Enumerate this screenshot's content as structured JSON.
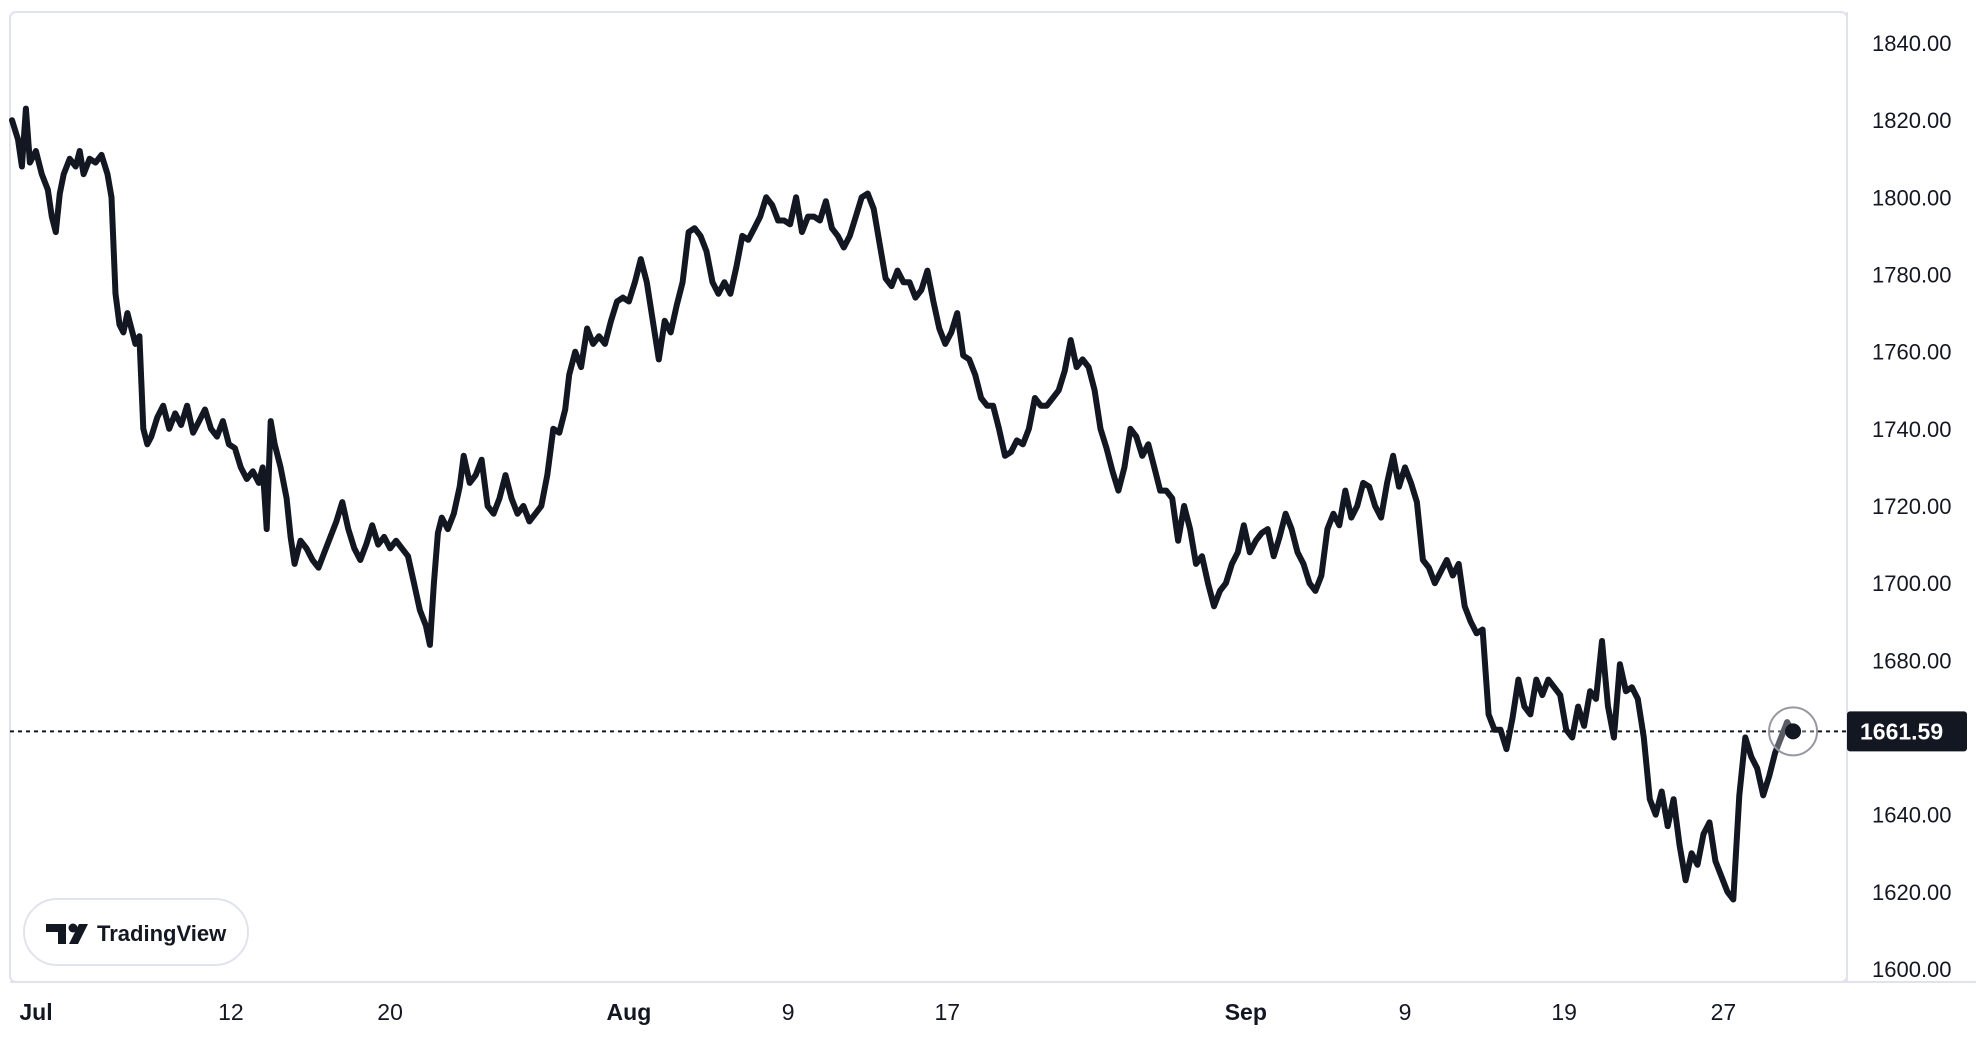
{
  "chart_data": {
    "type": "line",
    "x_axis": {
      "labels": [
        {
          "text": "Jul",
          "day": 0,
          "bold": true
        },
        {
          "text": "12",
          "day": 11
        },
        {
          "text": "20",
          "day": 19
        },
        {
          "text": "Aug",
          "day": 31,
          "bold": true
        },
        {
          "text": "9",
          "day": 39
        },
        {
          "text": "17",
          "day": 47
        },
        {
          "text": "Sep",
          "day": 62,
          "bold": true
        },
        {
          "text": "9",
          "day": 70
        },
        {
          "text": "19",
          "day": 78
        },
        {
          "text": "27",
          "day": 86
        }
      ]
    },
    "y_axis": {
      "min": 1600,
      "max": 1840,
      "ticks": [
        "1600.00",
        "1620.00",
        "1640.00",
        "1660.00",
        "1680.00",
        "1700.00",
        "1720.00",
        "1740.00",
        "1760.00",
        "1780.00",
        "1800.00",
        "1820.00",
        "1840.00"
      ],
      "position": "right"
    },
    "last_price": {
      "value": 1661.59,
      "label": "1661.59"
    },
    "grid": false,
    "series": [
      {
        "color": "#131722",
        "points": [
          [
            0.0,
            1820
          ],
          [
            0.3,
            1815
          ],
          [
            0.5,
            1808
          ],
          [
            0.7,
            1823
          ],
          [
            0.9,
            1809
          ],
          [
            1.2,
            1812
          ],
          [
            1.5,
            1806
          ],
          [
            1.8,
            1802
          ],
          [
            2.0,
            1795
          ],
          [
            2.2,
            1791
          ],
          [
            2.4,
            1801
          ],
          [
            2.6,
            1806
          ],
          [
            2.9,
            1810
          ],
          [
            3.2,
            1808
          ],
          [
            3.4,
            1812
          ],
          [
            3.6,
            1806
          ],
          [
            3.9,
            1810
          ],
          [
            4.2,
            1809
          ],
          [
            4.5,
            1811
          ],
          [
            4.8,
            1806
          ],
          [
            5.0,
            1800
          ],
          [
            5.2,
            1775
          ],
          [
            5.4,
            1767
          ],
          [
            5.6,
            1765
          ],
          [
            5.8,
            1770
          ],
          [
            6.0,
            1766
          ],
          [
            6.2,
            1762
          ],
          [
            6.4,
            1764
          ],
          [
            6.6,
            1740
          ],
          [
            6.8,
            1736
          ],
          [
            7.0,
            1738
          ],
          [
            7.3,
            1743
          ],
          [
            7.6,
            1746
          ],
          [
            7.9,
            1740
          ],
          [
            8.2,
            1744
          ],
          [
            8.5,
            1741
          ],
          [
            8.8,
            1746
          ],
          [
            9.1,
            1739
          ],
          [
            9.4,
            1742
          ],
          [
            9.7,
            1745
          ],
          [
            10.0,
            1740
          ],
          [
            10.3,
            1738
          ],
          [
            10.6,
            1742
          ],
          [
            10.9,
            1736
          ],
          [
            11.2,
            1735
          ],
          [
            11.5,
            1730
          ],
          [
            11.8,
            1727
          ],
          [
            12.1,
            1729
          ],
          [
            12.4,
            1726
          ],
          [
            12.6,
            1730
          ],
          [
            12.8,
            1714
          ],
          [
            13.0,
            1742
          ],
          [
            13.2,
            1736
          ],
          [
            13.5,
            1730
          ],
          [
            13.8,
            1722
          ],
          [
            14.0,
            1712
          ],
          [
            14.2,
            1705
          ],
          [
            14.5,
            1711
          ],
          [
            14.8,
            1709
          ],
          [
            15.1,
            1706
          ],
          [
            15.4,
            1704
          ],
          [
            15.7,
            1708
          ],
          [
            16.0,
            1712
          ],
          [
            16.3,
            1716
          ],
          [
            16.6,
            1721
          ],
          [
            16.9,
            1714
          ],
          [
            17.2,
            1709
          ],
          [
            17.5,
            1706
          ],
          [
            17.8,
            1710
          ],
          [
            18.1,
            1715
          ],
          [
            18.4,
            1710
          ],
          [
            18.7,
            1712
          ],
          [
            19.0,
            1709
          ],
          [
            19.3,
            1711
          ],
          [
            19.6,
            1709
          ],
          [
            19.9,
            1707
          ],
          [
            20.2,
            1700
          ],
          [
            20.5,
            1693
          ],
          [
            20.8,
            1689
          ],
          [
            21.0,
            1684
          ],
          [
            21.2,
            1700
          ],
          [
            21.4,
            1713
          ],
          [
            21.6,
            1717
          ],
          [
            21.9,
            1714
          ],
          [
            22.2,
            1718
          ],
          [
            22.5,
            1725
          ],
          [
            22.7,
            1733
          ],
          [
            23.0,
            1726
          ],
          [
            23.3,
            1728
          ],
          [
            23.6,
            1732
          ],
          [
            23.9,
            1720
          ],
          [
            24.2,
            1718
          ],
          [
            24.5,
            1722
          ],
          [
            24.8,
            1728
          ],
          [
            25.1,
            1722
          ],
          [
            25.4,
            1718
          ],
          [
            25.7,
            1720
          ],
          [
            26.0,
            1716
          ],
          [
            26.3,
            1718
          ],
          [
            26.6,
            1720
          ],
          [
            26.9,
            1728
          ],
          [
            27.2,
            1740
          ],
          [
            27.5,
            1739
          ],
          [
            27.8,
            1745
          ],
          [
            28.0,
            1754
          ],
          [
            28.3,
            1760
          ],
          [
            28.6,
            1756
          ],
          [
            28.9,
            1766
          ],
          [
            29.2,
            1762
          ],
          [
            29.5,
            1764
          ],
          [
            29.8,
            1762
          ],
          [
            30.1,
            1768
          ],
          [
            30.4,
            1773
          ],
          [
            30.7,
            1774
          ],
          [
            31.0,
            1773
          ],
          [
            31.3,
            1778
          ],
          [
            31.6,
            1784
          ],
          [
            31.9,
            1778
          ],
          [
            32.2,
            1768
          ],
          [
            32.5,
            1758
          ],
          [
            32.8,
            1768
          ],
          [
            33.1,
            1765
          ],
          [
            33.4,
            1772
          ],
          [
            33.7,
            1778
          ],
          [
            34.0,
            1791
          ],
          [
            34.3,
            1792
          ],
          [
            34.6,
            1790
          ],
          [
            34.9,
            1786
          ],
          [
            35.2,
            1778
          ],
          [
            35.5,
            1775
          ],
          [
            35.8,
            1778
          ],
          [
            36.1,
            1775
          ],
          [
            36.4,
            1782
          ],
          [
            36.7,
            1790
          ],
          [
            37.0,
            1789
          ],
          [
            37.3,
            1792
          ],
          [
            37.6,
            1795
          ],
          [
            37.9,
            1800
          ],
          [
            38.2,
            1798
          ],
          [
            38.5,
            1794
          ],
          [
            38.8,
            1794
          ],
          [
            39.1,
            1793
          ],
          [
            39.4,
            1800
          ],
          [
            39.7,
            1791
          ],
          [
            40.0,
            1795
          ],
          [
            40.3,
            1795
          ],
          [
            40.6,
            1794
          ],
          [
            40.9,
            1799
          ],
          [
            41.2,
            1792
          ],
          [
            41.5,
            1790
          ],
          [
            41.8,
            1787
          ],
          [
            42.1,
            1790
          ],
          [
            42.4,
            1795
          ],
          [
            42.7,
            1800
          ],
          [
            43.0,
            1801
          ],
          [
            43.3,
            1797
          ],
          [
            43.6,
            1788
          ],
          [
            43.9,
            1779
          ],
          [
            44.2,
            1777
          ],
          [
            44.5,
            1781
          ],
          [
            44.8,
            1778
          ],
          [
            45.1,
            1778
          ],
          [
            45.4,
            1774
          ],
          [
            45.7,
            1776
          ],
          [
            46.0,
            1781
          ],
          [
            46.3,
            1773
          ],
          [
            46.6,
            1766
          ],
          [
            46.9,
            1762
          ],
          [
            47.2,
            1765
          ],
          [
            47.5,
            1770
          ],
          [
            47.8,
            1759
          ],
          [
            48.1,
            1758
          ],
          [
            48.4,
            1754
          ],
          [
            48.7,
            1748
          ],
          [
            49.0,
            1746
          ],
          [
            49.3,
            1746
          ],
          [
            49.6,
            1740
          ],
          [
            49.9,
            1733
          ],
          [
            50.2,
            1734
          ],
          [
            50.5,
            1737
          ],
          [
            50.8,
            1736
          ],
          [
            51.1,
            1740
          ],
          [
            51.4,
            1748
          ],
          [
            51.7,
            1746
          ],
          [
            52.0,
            1746
          ],
          [
            52.3,
            1748
          ],
          [
            52.6,
            1750
          ],
          [
            52.9,
            1755
          ],
          [
            53.2,
            1763
          ],
          [
            53.5,
            1756
          ],
          [
            53.8,
            1758
          ],
          [
            54.1,
            1756
          ],
          [
            54.4,
            1750
          ],
          [
            54.7,
            1740
          ],
          [
            55.0,
            1735
          ],
          [
            55.3,
            1729
          ],
          [
            55.6,
            1724
          ],
          [
            55.9,
            1730
          ],
          [
            56.2,
            1740
          ],
          [
            56.5,
            1738
          ],
          [
            56.8,
            1733
          ],
          [
            57.1,
            1736
          ],
          [
            57.4,
            1730
          ],
          [
            57.7,
            1724
          ],
          [
            58.0,
            1724
          ],
          [
            58.3,
            1722
          ],
          [
            58.6,
            1711
          ],
          [
            58.9,
            1720
          ],
          [
            59.2,
            1714
          ],
          [
            59.5,
            1705
          ],
          [
            59.8,
            1707
          ],
          [
            60.1,
            1700
          ],
          [
            60.4,
            1694
          ],
          [
            60.7,
            1698
          ],
          [
            61.0,
            1700
          ],
          [
            61.3,
            1705
          ],
          [
            61.6,
            1708
          ],
          [
            61.9,
            1715
          ],
          [
            62.2,
            1708
          ],
          [
            62.5,
            1711
          ],
          [
            62.8,
            1713
          ],
          [
            63.1,
            1714
          ],
          [
            63.4,
            1707
          ],
          [
            63.7,
            1712
          ],
          [
            64.0,
            1718
          ],
          [
            64.3,
            1714
          ],
          [
            64.6,
            1708
          ],
          [
            64.9,
            1705
          ],
          [
            65.2,
            1700
          ],
          [
            65.5,
            1698
          ],
          [
            65.8,
            1702
          ],
          [
            66.1,
            1714
          ],
          [
            66.4,
            1718
          ],
          [
            66.7,
            1715
          ],
          [
            67.0,
            1724
          ],
          [
            67.3,
            1717
          ],
          [
            67.6,
            1720
          ],
          [
            67.9,
            1726
          ],
          [
            68.2,
            1725
          ],
          [
            68.5,
            1720
          ],
          [
            68.8,
            1717
          ],
          [
            69.1,
            1726
          ],
          [
            69.4,
            1733
          ],
          [
            69.7,
            1725
          ],
          [
            70.0,
            1730
          ],
          [
            70.3,
            1726
          ],
          [
            70.6,
            1721
          ],
          [
            70.9,
            1706
          ],
          [
            71.2,
            1704
          ],
          [
            71.5,
            1700
          ],
          [
            71.8,
            1703
          ],
          [
            72.1,
            1706
          ],
          [
            72.4,
            1702
          ],
          [
            72.7,
            1705
          ],
          [
            73.0,
            1694
          ],
          [
            73.3,
            1690
          ],
          [
            73.6,
            1687
          ],
          [
            73.9,
            1688
          ],
          [
            74.2,
            1666
          ],
          [
            74.5,
            1662
          ],
          [
            74.8,
            1662
          ],
          [
            75.1,
            1657
          ],
          [
            75.4,
            1665
          ],
          [
            75.7,
            1675
          ],
          [
            76.0,
            1668
          ],
          [
            76.3,
            1666
          ],
          [
            76.6,
            1675
          ],
          [
            76.9,
            1671
          ],
          [
            77.2,
            1675
          ],
          [
            77.5,
            1673
          ],
          [
            77.8,
            1671
          ],
          [
            78.1,
            1662
          ],
          [
            78.4,
            1660
          ],
          [
            78.7,
            1668
          ],
          [
            79.0,
            1663
          ],
          [
            79.3,
            1672
          ],
          [
            79.6,
            1670
          ],
          [
            79.9,
            1685
          ],
          [
            80.2,
            1668
          ],
          [
            80.5,
            1660
          ],
          [
            80.8,
            1679
          ],
          [
            81.1,
            1672
          ],
          [
            81.4,
            1673
          ],
          [
            81.7,
            1670
          ],
          [
            82.0,
            1660
          ],
          [
            82.3,
            1644
          ],
          [
            82.6,
            1640
          ],
          [
            82.9,
            1646
          ],
          [
            83.2,
            1637
          ],
          [
            83.5,
            1644
          ],
          [
            83.8,
            1632
          ],
          [
            84.1,
            1623
          ],
          [
            84.4,
            1630
          ],
          [
            84.7,
            1627
          ],
          [
            85.0,
            1635
          ],
          [
            85.3,
            1638
          ],
          [
            85.6,
            1628
          ],
          [
            85.9,
            1624
          ],
          [
            86.2,
            1620
          ],
          [
            86.5,
            1618
          ],
          [
            86.8,
            1645
          ],
          [
            87.1,
            1660
          ],
          [
            87.4,
            1655
          ],
          [
            87.7,
            1652
          ],
          [
            88.0,
            1645
          ],
          [
            88.3,
            1650
          ],
          [
            88.6,
            1656
          ],
          [
            88.9,
            1660
          ],
          [
            89.2,
            1664
          ],
          [
            89.5,
            1661.59
          ]
        ]
      }
    ]
  },
  "branding": {
    "logo_text": "TradingView"
  }
}
